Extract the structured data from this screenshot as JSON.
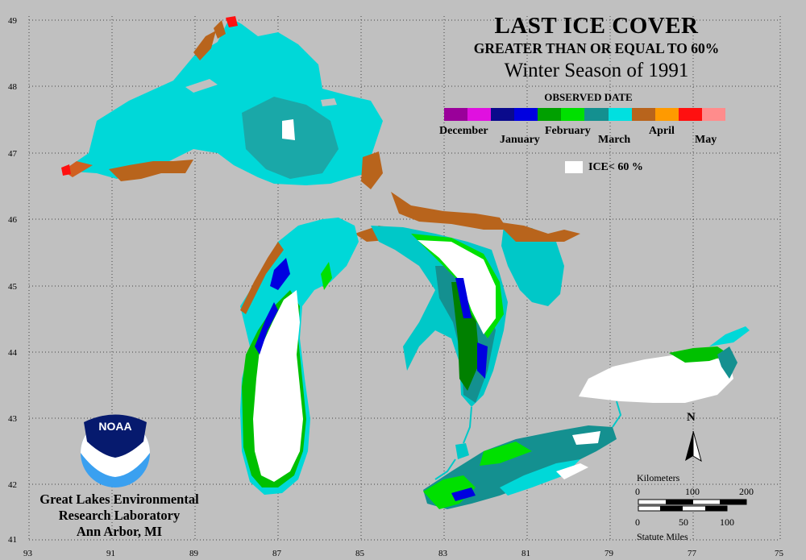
{
  "title": {
    "line1": "LAST ICE COVER",
    "line2": "GREATER THAN OR EQUAL TO 60%",
    "line3": "Winter Season of 1991",
    "legend_heading": "OBSERVED DATE"
  },
  "legend": {
    "colors": [
      "#9a009a",
      "#e010e0",
      "#0a0a8c",
      "#0000e0",
      "#00a000",
      "#00e000",
      "#149090",
      "#00e0e0",
      "#b8641c",
      "#ff9a00",
      "#ff1010",
      "#ff8c8c"
    ],
    "months": [
      "December",
      "January",
      "February",
      "March",
      "April",
      "May"
    ],
    "ice_label": "ICE< 60 %"
  },
  "lat_labels": [
    "49",
    "48",
    "47",
    "46",
    "45",
    "44",
    "43",
    "42",
    "41"
  ],
  "lon_labels": [
    "93",
    "91",
    "89",
    "87",
    "85",
    "83",
    "81",
    "79",
    "77",
    "75"
  ],
  "organization": {
    "logo_text": "NOAA",
    "line1": "Great Lakes Environmental",
    "line2": "Research Laboratory",
    "line3": "Ann Arbor, MI"
  },
  "north_label": "N",
  "scale": {
    "title": "Kilometers",
    "km": [
      "0",
      "100",
      "200"
    ],
    "mi": [
      "0",
      "50",
      "100"
    ],
    "subtitle": "Statute Miles"
  }
}
